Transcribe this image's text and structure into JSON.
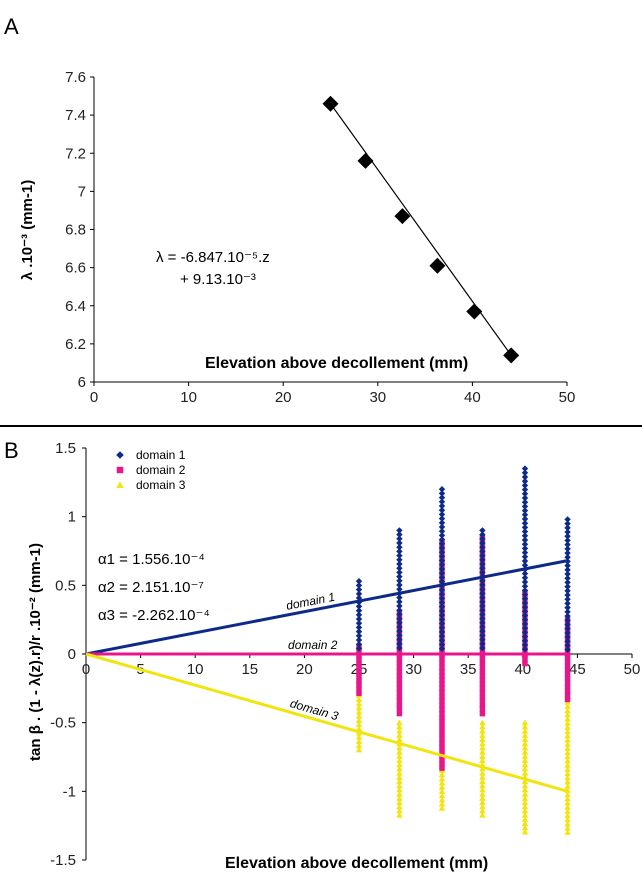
{
  "chart_data": [
    {
      "panel": "A",
      "type": "scatter",
      "xlabel": "Elevation above decollement (mm)",
      "ylabel": "λ .10⁻³ (mm-1)",
      "xlim": [
        0,
        50
      ],
      "ylim": [
        6,
        7.6
      ],
      "xticks": [
        "0",
        "10",
        "20",
        "30",
        "40",
        "50"
      ],
      "yticks": [
        "6",
        "6.2",
        "6.4",
        "6.6",
        "6.8",
        "7",
        "7.2",
        "7.4",
        "7.6"
      ],
      "equation_line1": "λ = -6.847.10⁻⁵.z",
      "equation_line2": "+ 9.13.10⁻³",
      "series": [
        {
          "x": [
            25,
            28.7,
            32.6,
            36.3,
            40.2,
            44.1
          ],
          "y": [
            7.46,
            7.16,
            6.87,
            6.61,
            6.37,
            6.14
          ]
        }
      ],
      "fit": {
        "x": [
          25,
          44.1
        ],
        "y": [
          7.46,
          6.14
        ]
      }
    },
    {
      "panel": "B",
      "type": "scatter",
      "xlabel": "Elevation above decollement (mm)",
      "ylabel": "tan β . (1 - λ(z).r)/r .10⁻² (mm-1)",
      "xlim": [
        0,
        50
      ],
      "ylim": [
        -1.5,
        1.5
      ],
      "xticks": [
        "0",
        "5",
        "10",
        "15",
        "20",
        "25",
        "30",
        "35",
        "40",
        "45",
        "50"
      ],
      "yticks": [
        "-1.5",
        "-1",
        "-0.5",
        "0",
        "0.5",
        "1",
        "1.5"
      ],
      "alpha_labels": [
        "α1 = 1.556.10⁻⁴",
        "α2 = 2.151.10⁻⁷",
        "α3 = -2.262.10⁻⁴"
      ],
      "legend": [
        "domain 1",
        "domain 2",
        "domain 3"
      ],
      "legend_position": "top-left",
      "x_columns": [
        25,
        28.7,
        32.6,
        36.3,
        40.2,
        44.1
      ],
      "series": [
        {
          "name": "domain 1",
          "color": "#0d2a8a",
          "marker": "diamond",
          "ranges": [
            [
              0.03,
              0.53
            ],
            [
              0.03,
              0.9
            ],
            [
              0.03,
              1.2
            ],
            [
              0.03,
              0.9
            ],
            [
              0.03,
              1.35
            ],
            [
              0.03,
              0.98
            ]
          ],
          "fit": {
            "x": [
              0,
              44.1
            ],
            "y": [
              0,
              0.68
            ]
          },
          "line_label": "domain 1"
        },
        {
          "name": "domain 2",
          "color": "#e8168c",
          "marker": "square",
          "ranges": [
            [
              -0.3,
              0.05
            ],
            [
              -0.45,
              0.3
            ],
            [
              -0.85,
              0.82
            ],
            [
              -0.45,
              0.85
            ],
            [
              -0.1,
              0.45
            ],
            [
              -0.35,
              0.25
            ]
          ],
          "fit": {
            "x": [
              0,
              44.1
            ],
            "y": [
              0,
              0
            ]
          },
          "line_label": "domain 2"
        },
        {
          "name": "domain 3",
          "color": "#f2e40f",
          "marker": "triangle",
          "ranges": [
            [
              -0.72,
              -0.3
            ],
            [
              -1.2,
              -0.5
            ],
            [
              -1.15,
              -0.45
            ],
            [
              -1.2,
              -0.5
            ],
            [
              -1.3,
              -0.5
            ],
            [
              -1.3,
              -0.32
            ]
          ],
          "fit": {
            "x": [
              0,
              44.1
            ],
            "y": [
              0,
              -1.0
            ]
          },
          "line_label": "domain 3"
        }
      ]
    }
  ]
}
